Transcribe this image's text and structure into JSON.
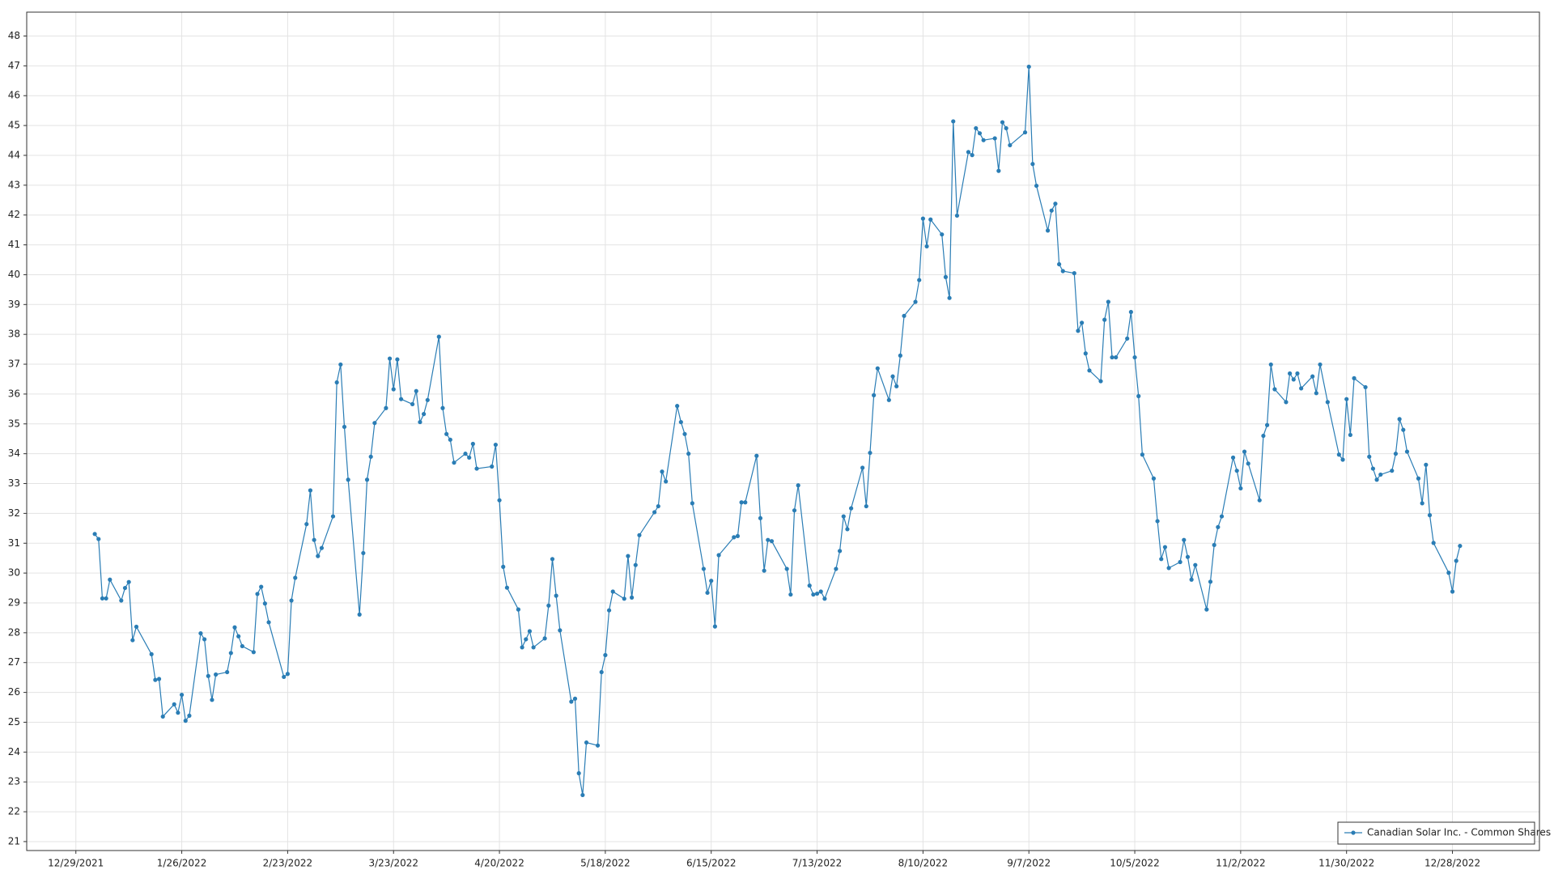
{
  "chart_data": {
    "type": "line",
    "x": [
      "2022-01-03",
      "2022-01-04",
      "2022-01-05",
      "2022-01-06",
      "2022-01-07",
      "2022-01-10",
      "2022-01-11",
      "2022-01-12",
      "2022-01-13",
      "2022-01-14",
      "2022-01-18",
      "2022-01-19",
      "2022-01-20",
      "2022-01-21",
      "2022-01-24",
      "2022-01-25",
      "2022-01-26",
      "2022-01-27",
      "2022-01-28",
      "2022-01-31",
      "2022-02-01",
      "2022-02-02",
      "2022-02-03",
      "2022-02-04",
      "2022-02-07",
      "2022-02-08",
      "2022-02-09",
      "2022-02-10",
      "2022-02-11",
      "2022-02-14",
      "2022-02-15",
      "2022-02-16",
      "2022-02-17",
      "2022-02-18",
      "2022-02-22",
      "2022-02-23",
      "2022-02-24",
      "2022-02-25",
      "2022-02-28",
      "2022-03-01",
      "2022-03-02",
      "2022-03-03",
      "2022-03-04",
      "2022-03-07",
      "2022-03-08",
      "2022-03-09",
      "2022-03-10",
      "2022-03-11",
      "2022-03-14",
      "2022-03-15",
      "2022-03-16",
      "2022-03-17",
      "2022-03-18",
      "2022-03-21",
      "2022-03-22",
      "2022-03-23",
      "2022-03-24",
      "2022-03-25",
      "2022-03-28",
      "2022-03-29",
      "2022-03-30",
      "2022-03-31",
      "2022-04-01",
      "2022-04-04",
      "2022-04-05",
      "2022-04-06",
      "2022-04-07",
      "2022-04-08",
      "2022-04-11",
      "2022-04-12",
      "2022-04-13",
      "2022-04-14",
      "2022-04-18",
      "2022-04-19",
      "2022-04-20",
      "2022-04-21",
      "2022-04-22",
      "2022-04-25",
      "2022-04-26",
      "2022-04-27",
      "2022-04-28",
      "2022-04-29",
      "2022-05-02",
      "2022-05-03",
      "2022-05-04",
      "2022-05-05",
      "2022-05-06",
      "2022-05-09",
      "2022-05-10",
      "2022-05-11",
      "2022-05-12",
      "2022-05-13",
      "2022-05-16",
      "2022-05-17",
      "2022-05-18",
      "2022-05-19",
      "2022-05-20",
      "2022-05-23",
      "2022-05-24",
      "2022-05-25",
      "2022-05-26",
      "2022-05-27",
      "2022-05-31",
      "2022-06-01",
      "2022-06-02",
      "2022-06-03",
      "2022-06-06",
      "2022-06-07",
      "2022-06-08",
      "2022-06-09",
      "2022-06-10",
      "2022-06-13",
      "2022-06-14",
      "2022-06-15",
      "2022-06-16",
      "2022-06-17",
      "2022-06-21",
      "2022-06-22",
      "2022-06-23",
      "2022-06-24",
      "2022-06-27",
      "2022-06-28",
      "2022-06-29",
      "2022-06-30",
      "2022-07-01",
      "2022-07-05",
      "2022-07-06",
      "2022-07-07",
      "2022-07-08",
      "2022-07-11",
      "2022-07-12",
      "2022-07-13",
      "2022-07-14",
      "2022-07-15",
      "2022-07-18",
      "2022-07-19",
      "2022-07-20",
      "2022-07-21",
      "2022-07-22",
      "2022-07-25",
      "2022-07-26",
      "2022-07-27",
      "2022-07-28",
      "2022-07-29",
      "2022-08-01",
      "2022-08-02",
      "2022-08-03",
      "2022-08-04",
      "2022-08-05",
      "2022-08-08",
      "2022-08-09",
      "2022-08-10",
      "2022-08-11",
      "2022-08-12",
      "2022-08-15",
      "2022-08-16",
      "2022-08-17",
      "2022-08-18",
      "2022-08-19",
      "2022-08-22",
      "2022-08-23",
      "2022-08-24",
      "2022-08-25",
      "2022-08-26",
      "2022-08-29",
      "2022-08-30",
      "2022-08-31",
      "2022-09-01",
      "2022-09-02",
      "2022-09-06",
      "2022-09-07",
      "2022-09-08",
      "2022-09-09",
      "2022-09-12",
      "2022-09-13",
      "2022-09-14",
      "2022-09-15",
      "2022-09-16",
      "2022-09-19",
      "2022-09-20",
      "2022-09-21",
      "2022-09-22",
      "2022-09-23",
      "2022-09-26",
      "2022-09-27",
      "2022-09-28",
      "2022-09-29",
      "2022-09-30",
      "2022-10-03",
      "2022-10-04",
      "2022-10-05",
      "2022-10-06",
      "2022-10-07",
      "2022-10-10",
      "2022-10-11",
      "2022-10-12",
      "2022-10-13",
      "2022-10-14",
      "2022-10-17",
      "2022-10-18",
      "2022-10-19",
      "2022-10-20",
      "2022-10-21",
      "2022-10-24",
      "2022-10-25",
      "2022-10-26",
      "2022-10-27",
      "2022-10-28",
      "2022-10-31",
      "2022-11-01",
      "2022-11-02",
      "2022-11-03",
      "2022-11-04",
      "2022-11-07",
      "2022-11-08",
      "2022-11-09",
      "2022-11-10",
      "2022-11-11",
      "2022-11-14",
      "2022-11-15",
      "2022-11-16",
      "2022-11-17",
      "2022-11-18",
      "2022-11-21",
      "2022-11-22",
      "2022-11-23",
      "2022-11-25",
      "2022-11-28",
      "2022-11-29",
      "2022-11-30",
      "2022-12-01",
      "2022-12-02",
      "2022-12-05",
      "2022-12-06",
      "2022-12-07",
      "2022-12-08",
      "2022-12-09",
      "2022-12-12",
      "2022-12-13",
      "2022-12-14",
      "2022-12-15",
      "2022-12-16",
      "2022-12-19",
      "2022-12-20",
      "2022-12-21",
      "2022-12-22",
      "2022-12-23",
      "2022-12-27",
      "2022-12-28",
      "2022-12-29",
      "2022-12-30"
    ],
    "series": [
      {
        "name": "Canadian Solar Inc. - Common Shares",
        "color": "#2a7db5",
        "values": [
          31.31,
          31.14,
          29.15,
          29.15,
          29.78,
          29.08,
          29.5,
          29.7,
          27.75,
          28.2,
          27.28,
          26.42,
          26.45,
          25.19,
          25.6,
          25.32,
          25.92,
          25.05,
          25.22,
          27.98,
          27.78,
          26.55,
          25.75,
          26.6,
          26.68,
          27.32,
          28.18,
          27.88,
          27.55,
          27.35,
          29.3,
          29.54,
          28.98,
          28.35,
          26.52,
          26.62,
          29.08,
          29.84,
          31.64,
          32.77,
          31.11,
          30.57,
          30.84,
          31.9,
          36.39,
          36.99,
          34.9,
          33.13,
          28.61,
          30.67,
          33.13,
          33.9,
          35.03,
          35.53,
          37.19,
          36.16,
          37.16,
          35.83,
          35.66,
          36.1,
          35.06,
          35.33,
          35.8,
          37.92,
          35.53,
          34.66,
          34.47,
          33.7,
          34.0,
          33.87,
          34.33,
          33.5,
          33.57,
          34.3,
          32.44,
          30.21,
          29.51,
          28.78,
          27.51,
          27.78,
          28.05,
          27.51,
          27.81,
          28.91,
          30.47,
          29.24,
          28.08,
          25.69,
          25.79,
          23.29,
          22.56,
          24.32,
          24.22,
          26.68,
          27.25,
          28.75,
          29.38,
          29.14,
          30.57,
          29.18,
          30.27,
          31.27,
          32.04,
          32.24,
          33.4,
          33.07,
          35.6,
          35.06,
          34.66,
          34.0,
          32.34,
          30.14,
          29.34,
          29.74,
          28.21,
          30.6,
          31.2,
          31.24,
          32.37,
          32.37,
          33.93,
          31.84,
          30.08,
          31.11,
          31.07,
          30.14,
          29.28,
          32.1,
          32.94,
          29.58,
          29.28,
          29.31,
          29.38,
          29.14,
          30.14,
          30.74,
          31.9,
          31.47,
          32.17,
          33.53,
          32.24,
          34.03,
          35.96,
          36.86,
          35.8,
          36.59,
          36.26,
          37.29,
          38.62,
          39.09,
          39.82,
          41.88,
          40.95,
          41.85,
          41.35,
          39.92,
          39.22,
          45.14,
          41.98,
          44.11,
          44.01,
          44.91,
          44.74,
          44.51,
          44.57,
          43.48,
          45.11,
          44.91,
          44.34,
          44.77,
          46.97,
          43.71,
          42.98,
          41.48,
          42.15,
          42.38,
          40.35,
          40.12,
          40.05,
          38.12,
          38.39,
          37.36,
          36.79,
          36.43,
          38.49,
          39.09,
          37.23,
          37.23,
          37.86,
          38.75,
          37.23,
          35.93,
          33.97,
          33.17,
          31.74,
          30.47,
          30.87,
          30.17,
          30.37,
          31.11,
          30.54,
          29.78,
          30.27,
          28.78,
          29.71,
          30.94,
          31.54,
          31.9,
          33.87,
          33.43,
          32.84,
          34.07,
          33.67,
          32.44,
          34.6,
          34.96,
          36.99,
          36.16,
          35.73,
          36.69,
          36.49,
          36.69,
          36.19,
          36.59,
          36.03,
          36.99,
          35.73,
          33.97,
          33.8,
          35.83,
          34.63,
          36.53,
          36.23,
          33.9,
          33.5,
          33.13,
          33.3,
          33.43,
          34.0,
          35.16,
          34.8,
          34.07,
          33.17,
          32.34,
          33.63,
          31.94,
          31.01,
          30.01,
          29.38,
          30.41,
          30.91
        ]
      }
    ],
    "xlim": [
      "2021-12-16",
      "2023-01-20"
    ],
    "xticks": [
      {
        "value": "2021-12-29",
        "label": "12/29/2021"
      },
      {
        "value": "2022-01-26",
        "label": "1/26/2022"
      },
      {
        "value": "2022-02-23",
        "label": "2/23/2022"
      },
      {
        "value": "2022-03-23",
        "label": "3/23/2022"
      },
      {
        "value": "2022-04-20",
        "label": "4/20/2022"
      },
      {
        "value": "2022-05-18",
        "label": "5/18/2022"
      },
      {
        "value": "2022-06-15",
        "label": "6/15/2022"
      },
      {
        "value": "2022-07-13",
        "label": "7/13/2022"
      },
      {
        "value": "2022-08-10",
        "label": "8/10/2022"
      },
      {
        "value": "2022-09-07",
        "label": "9/7/2022"
      },
      {
        "value": "2022-10-05",
        "label": "10/5/2022"
      },
      {
        "value": "2022-11-02",
        "label": "11/2/2022"
      },
      {
        "value": "2022-11-30",
        "label": "11/30/2022"
      },
      {
        "value": "2022-12-28",
        "label": "12/28/2022"
      }
    ],
    "ylim": [
      20.7,
      48.8
    ],
    "yticks": [
      21,
      22,
      23,
      24,
      25,
      26,
      27,
      28,
      29,
      30,
      31,
      32,
      33,
      34,
      35,
      36,
      37,
      38,
      39,
      40,
      41,
      42,
      43,
      44,
      45,
      46,
      47,
      48
    ],
    "grid": true,
    "marker": true,
    "legend": "bottom-right"
  }
}
